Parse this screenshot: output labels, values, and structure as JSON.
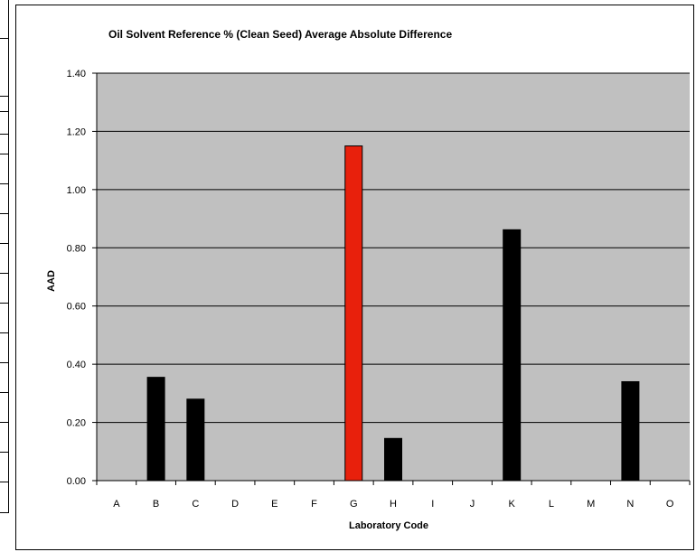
{
  "chart_data": {
    "type": "bar",
    "title": "Oil Solvent Reference % (Clean Seed) Average Absolute Difference",
    "xlabel": "Laboratory Code",
    "ylabel": "AAD",
    "categories": [
      "A",
      "B",
      "C",
      "D",
      "E",
      "F",
      "G",
      "H",
      "I",
      "J",
      "K",
      "L",
      "M",
      "N",
      "O"
    ],
    "values": [
      0,
      0.355,
      0.28,
      0,
      0,
      0,
      1.15,
      0.145,
      0,
      0,
      0.862,
      0,
      0,
      0.34,
      0
    ],
    "highlight_index": 6,
    "ylim": [
      0,
      1.4
    ],
    "yticks": [
      "0.00",
      "0.20",
      "0.40",
      "0.60",
      "0.80",
      "1.00",
      "1.20",
      "1.40"
    ],
    "grid": true,
    "legend": "none",
    "colors": {
      "bar": "#000000",
      "highlight": "#e8200c",
      "plot_background": "#c0c0c0",
      "gridline": "#000000"
    }
  }
}
